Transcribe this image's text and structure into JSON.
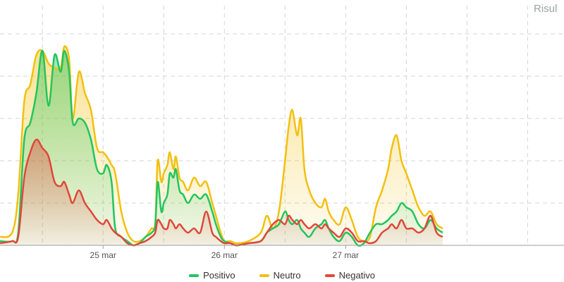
{
  "title_fragment": "Risul",
  "colors": {
    "Positivo": "#22c55e",
    "Neutro": "#f2c010",
    "Negativo": "#e0473a",
    "grid": "#d4d4d4",
    "axis": "#9e9e9e"
  },
  "chart_data": {
    "type": "area",
    "x_unit": "days since 24 mar 00:00",
    "xlim": [
      -0.85,
      3.8
    ],
    "ylim": [
      0,
      5
    ],
    "grid": true,
    "legend_position": "bottom-center",
    "x_ticks": [
      {
        "value": 0.0,
        "label": "25 mar"
      },
      {
        "value": 1.0,
        "label": "26 mar"
      },
      {
        "value": 2.0,
        "label": "27 mar"
      }
    ],
    "series": [
      {
        "name": "Positivo",
        "points": [
          [
            -0.85,
            0.1
          ],
          [
            -0.75,
            0.1
          ],
          [
            -0.7,
            0.3
          ],
          [
            -0.65,
            2.5
          ],
          [
            -0.6,
            2.9
          ],
          [
            -0.55,
            3.6
          ],
          [
            -0.5,
            4.6
          ],
          [
            -0.45,
            3.3
          ],
          [
            -0.4,
            4.5
          ],
          [
            -0.35,
            4.1
          ],
          [
            -0.32,
            4.6
          ],
          [
            -0.28,
            4.1
          ],
          [
            -0.25,
            2.9
          ],
          [
            -0.2,
            3.0
          ],
          [
            -0.15,
            2.9
          ],
          [
            -0.1,
            2.5
          ],
          [
            -0.05,
            1.8
          ],
          [
            0.0,
            1.7
          ],
          [
            0.03,
            1.9
          ],
          [
            0.07,
            1.5
          ],
          [
            0.1,
            0.4
          ],
          [
            0.15,
            0.2
          ],
          [
            0.2,
            0.1
          ],
          [
            0.25,
            0.0
          ],
          [
            0.3,
            0.05
          ],
          [
            0.35,
            0.2
          ],
          [
            0.4,
            0.3
          ],
          [
            0.43,
            0.5
          ],
          [
            0.45,
            1.5
          ],
          [
            0.48,
            0.8
          ],
          [
            0.5,
            1.0
          ],
          [
            0.53,
            1.2
          ],
          [
            0.55,
            1.7
          ],
          [
            0.58,
            1.6
          ],
          [
            0.6,
            1.8
          ],
          [
            0.63,
            1.3
          ],
          [
            0.66,
            1.2
          ],
          [
            0.7,
            1.0
          ],
          [
            0.75,
            1.2
          ],
          [
            0.8,
            1.1
          ],
          [
            0.85,
            1.2
          ],
          [
            0.9,
            0.8
          ],
          [
            0.93,
            0.5
          ],
          [
            0.97,
            0.2
          ],
          [
            1.0,
            0.1
          ],
          [
            1.05,
            0.05
          ],
          [
            1.1,
            0.0
          ],
          [
            1.2,
            0.05
          ],
          [
            1.3,
            0.1
          ],
          [
            1.35,
            0.3
          ],
          [
            1.4,
            0.4
          ],
          [
            1.45,
            0.5
          ],
          [
            1.5,
            0.8
          ],
          [
            1.53,
            0.6
          ],
          [
            1.56,
            0.5
          ],
          [
            1.6,
            0.6
          ],
          [
            1.63,
            0.4
          ],
          [
            1.66,
            0.3
          ],
          [
            1.7,
            0.2
          ],
          [
            1.75,
            0.4
          ],
          [
            1.8,
            0.5
          ],
          [
            1.83,
            0.6
          ],
          [
            1.86,
            0.4
          ],
          [
            1.9,
            0.2
          ],
          [
            1.95,
            0.1
          ],
          [
            2.0,
            0.3
          ],
          [
            2.05,
            0.2
          ],
          [
            2.1,
            0.0
          ],
          [
            2.15,
            0.05
          ],
          [
            2.2,
            0.3
          ],
          [
            2.25,
            0.5
          ],
          [
            2.3,
            0.5
          ],
          [
            2.35,
            0.6
          ],
          [
            2.38,
            0.7
          ],
          [
            2.42,
            0.8
          ],
          [
            2.46,
            1.0
          ],
          [
            2.5,
            0.9
          ],
          [
            2.55,
            0.8
          ],
          [
            2.6,
            0.5
          ],
          [
            2.65,
            0.4
          ],
          [
            2.7,
            0.6
          ],
          [
            2.75,
            0.4
          ],
          [
            2.8,
            0.3
          ]
        ]
      },
      {
        "name": "Neutro",
        "points": [
          [
            -0.85,
            0.2
          ],
          [
            -0.75,
            0.3
          ],
          [
            -0.7,
            1.2
          ],
          [
            -0.65,
            3.4
          ],
          [
            -0.6,
            3.8
          ],
          [
            -0.55,
            4.5
          ],
          [
            -0.5,
            4.6
          ],
          [
            -0.45,
            4.3
          ],
          [
            -0.4,
            4.2
          ],
          [
            -0.35,
            4.2
          ],
          [
            -0.32,
            4.7
          ],
          [
            -0.28,
            4.4
          ],
          [
            -0.25,
            3.0
          ],
          [
            -0.2,
            4.1
          ],
          [
            -0.15,
            3.6
          ],
          [
            -0.1,
            3.2
          ],
          [
            -0.05,
            2.3
          ],
          [
            0.0,
            2.2
          ],
          [
            0.03,
            2.1
          ],
          [
            0.07,
            1.9
          ],
          [
            0.1,
            1.7
          ],
          [
            0.15,
            0.8
          ],
          [
            0.2,
            0.3
          ],
          [
            0.25,
            0.1
          ],
          [
            0.3,
            0.1
          ],
          [
            0.35,
            0.2
          ],
          [
            0.4,
            0.4
          ],
          [
            0.43,
            0.5
          ],
          [
            0.45,
            2.0
          ],
          [
            0.48,
            1.5
          ],
          [
            0.5,
            1.7
          ],
          [
            0.53,
            1.9
          ],
          [
            0.55,
            2.2
          ],
          [
            0.58,
            1.8
          ],
          [
            0.6,
            2.1
          ],
          [
            0.63,
            1.6
          ],
          [
            0.66,
            1.5
          ],
          [
            0.7,
            1.3
          ],
          [
            0.75,
            1.6
          ],
          [
            0.8,
            1.4
          ],
          [
            0.85,
            1.5
          ],
          [
            0.9,
            1.0
          ],
          [
            0.93,
            0.7
          ],
          [
            0.97,
            0.3
          ],
          [
            1.0,
            0.1
          ],
          [
            1.05,
            0.1
          ],
          [
            1.1,
            0.05
          ],
          [
            1.2,
            0.1
          ],
          [
            1.3,
            0.3
          ],
          [
            1.35,
            0.7
          ],
          [
            1.4,
            0.4
          ],
          [
            1.45,
            0.8
          ],
          [
            1.5,
            2.0
          ],
          [
            1.53,
            2.8
          ],
          [
            1.56,
            3.2
          ],
          [
            1.6,
            2.6
          ],
          [
            1.63,
            3.0
          ],
          [
            1.66,
            1.8
          ],
          [
            1.7,
            1.3
          ],
          [
            1.75,
            1.0
          ],
          [
            1.8,
            0.9
          ],
          [
            1.83,
            1.1
          ],
          [
            1.86,
            0.8
          ],
          [
            1.9,
            0.6
          ],
          [
            1.95,
            0.5
          ],
          [
            2.0,
            0.9
          ],
          [
            2.05,
            0.6
          ],
          [
            2.1,
            0.2
          ],
          [
            2.15,
            0.1
          ],
          [
            2.2,
            0.2
          ],
          [
            2.25,
            0.9
          ],
          [
            2.3,
            1.3
          ],
          [
            2.35,
            1.8
          ],
          [
            2.38,
            2.3
          ],
          [
            2.42,
            2.6
          ],
          [
            2.46,
            2.0
          ],
          [
            2.5,
            1.7
          ],
          [
            2.55,
            1.3
          ],
          [
            2.6,
            0.9
          ],
          [
            2.65,
            0.7
          ],
          [
            2.7,
            0.8
          ],
          [
            2.75,
            0.5
          ],
          [
            2.8,
            0.4
          ]
        ]
      },
      {
        "name": "Negativo",
        "points": [
          [
            -0.85,
            0.05
          ],
          [
            -0.75,
            0.1
          ],
          [
            -0.7,
            0.2
          ],
          [
            -0.65,
            1.6
          ],
          [
            -0.6,
            2.2
          ],
          [
            -0.55,
            2.5
          ],
          [
            -0.5,
            2.3
          ],
          [
            -0.45,
            2.1
          ],
          [
            -0.4,
            1.5
          ],
          [
            -0.35,
            1.4
          ],
          [
            -0.32,
            1.5
          ],
          [
            -0.28,
            1.2
          ],
          [
            -0.25,
            1.0
          ],
          [
            -0.2,
            1.3
          ],
          [
            -0.15,
            1.0
          ],
          [
            -0.1,
            0.8
          ],
          [
            -0.05,
            0.6
          ],
          [
            0.0,
            0.5
          ],
          [
            0.03,
            0.6
          ],
          [
            0.07,
            0.4
          ],
          [
            0.1,
            0.3
          ],
          [
            0.15,
            0.2
          ],
          [
            0.2,
            0.05
          ],
          [
            0.25,
            0.0
          ],
          [
            0.3,
            0.05
          ],
          [
            0.35,
            0.1
          ],
          [
            0.4,
            0.2
          ],
          [
            0.43,
            0.3
          ],
          [
            0.45,
            0.6
          ],
          [
            0.48,
            0.5
          ],
          [
            0.5,
            0.4
          ],
          [
            0.53,
            0.4
          ],
          [
            0.55,
            0.6
          ],
          [
            0.58,
            0.5
          ],
          [
            0.6,
            0.4
          ],
          [
            0.63,
            0.5
          ],
          [
            0.66,
            0.4
          ],
          [
            0.7,
            0.3
          ],
          [
            0.75,
            0.4
          ],
          [
            0.8,
            0.3
          ],
          [
            0.85,
            0.8
          ],
          [
            0.9,
            0.3
          ],
          [
            0.93,
            0.2
          ],
          [
            0.97,
            0.1
          ],
          [
            1.0,
            0.05
          ],
          [
            1.05,
            0.05
          ],
          [
            1.1,
            0.0
          ],
          [
            1.2,
            0.05
          ],
          [
            1.3,
            0.1
          ],
          [
            1.35,
            0.3
          ],
          [
            1.4,
            0.5
          ],
          [
            1.45,
            0.6
          ],
          [
            1.5,
            0.5
          ],
          [
            1.53,
            0.7
          ],
          [
            1.56,
            0.6
          ],
          [
            1.6,
            0.5
          ],
          [
            1.63,
            0.6
          ],
          [
            1.66,
            0.5
          ],
          [
            1.7,
            0.4
          ],
          [
            1.75,
            0.5
          ],
          [
            1.8,
            0.4
          ],
          [
            1.83,
            0.5
          ],
          [
            1.86,
            0.4
          ],
          [
            1.9,
            0.3
          ],
          [
            1.95,
            0.2
          ],
          [
            2.0,
            0.4
          ],
          [
            2.05,
            0.3
          ],
          [
            2.1,
            0.1
          ],
          [
            2.15,
            0.1
          ],
          [
            2.2,
            0.05
          ],
          [
            2.25,
            0.1
          ],
          [
            2.3,
            0.3
          ],
          [
            2.35,
            0.4
          ],
          [
            2.38,
            0.5
          ],
          [
            2.42,
            0.4
          ],
          [
            2.46,
            0.6
          ],
          [
            2.5,
            0.4
          ],
          [
            2.55,
            0.4
          ],
          [
            2.6,
            0.3
          ],
          [
            2.65,
            0.4
          ],
          [
            2.7,
            0.7
          ],
          [
            2.75,
            0.3
          ],
          [
            2.8,
            0.2
          ]
        ]
      }
    ]
  }
}
